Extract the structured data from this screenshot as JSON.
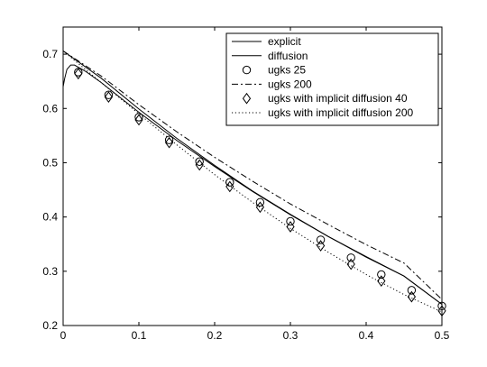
{
  "chart_data": {
    "type": "line",
    "title": "",
    "xlabel": "",
    "ylabel": "",
    "xlim": [
      0,
      0.5
    ],
    "ylim": [
      0.2,
      0.75
    ],
    "xticks": [
      0,
      0.1,
      0.2,
      0.3,
      0.4,
      0.5
    ],
    "yticks": [
      0.2,
      0.3,
      0.4,
      0.5,
      0.6,
      0.7
    ],
    "xtick_labels": [
      "0",
      "0.1",
      "0.2",
      "0.3",
      "0.4",
      "0.5"
    ],
    "ytick_labels": [
      "0.2",
      "0.3",
      "0.4",
      "0.5",
      "0.6",
      "0.7"
    ],
    "grid": false,
    "legend_position": "top-right",
    "series": [
      {
        "name": "explicit",
        "style": "solid",
        "marker": "none",
        "x": [
          0,
          0.002,
          0.005,
          0.01,
          0.015,
          0.02,
          0.03,
          0.05,
          0.1,
          0.15,
          0.2,
          0.25,
          0.3,
          0.35,
          0.4,
          0.45,
          0.5
        ],
        "y": [
          0.64,
          0.655,
          0.672,
          0.68,
          0.68,
          0.676,
          0.668,
          0.648,
          0.593,
          0.541,
          0.493,
          0.447,
          0.404,
          0.364,
          0.326,
          0.291,
          0.239
        ]
      },
      {
        "name": "diffusion",
        "style": "solid",
        "marker": "none",
        "x": [
          0,
          0.05,
          0.1,
          0.15,
          0.2,
          0.25,
          0.3,
          0.35,
          0.4,
          0.45,
          0.5
        ],
        "y": [
          0.706,
          0.656,
          0.599,
          0.545,
          0.495,
          0.448,
          0.405,
          0.364,
          0.327,
          0.291,
          0.239
        ]
      },
      {
        "name": "ugks 25",
        "style": "none",
        "marker": "circle",
        "x": [
          0.02,
          0.06,
          0.1,
          0.14,
          0.18,
          0.22,
          0.26,
          0.3,
          0.34,
          0.38,
          0.42,
          0.46,
          0.5
        ],
        "y": [
          0.667,
          0.625,
          0.584,
          0.542,
          0.502,
          0.464,
          0.427,
          0.392,
          0.358,
          0.325,
          0.294,
          0.265,
          0.236
        ]
      },
      {
        "name": "ugks 200",
        "style": "dashdot",
        "marker": "none",
        "x": [
          0,
          0.05,
          0.1,
          0.15,
          0.2,
          0.25,
          0.3,
          0.35,
          0.4,
          0.45,
          0.5
        ],
        "y": [
          0.706,
          0.66,
          0.607,
          0.557,
          0.51,
          0.466,
          0.424,
          0.386,
          0.349,
          0.315,
          0.248
        ]
      },
      {
        "name": "ugks with implicit diffusion 40",
        "style": "none",
        "marker": "diamond",
        "x": [
          0.02,
          0.06,
          0.1,
          0.14,
          0.18,
          0.22,
          0.26,
          0.3,
          0.34,
          0.38,
          0.42,
          0.46,
          0.5
        ],
        "y": [
          0.664,
          0.621,
          0.579,
          0.537,
          0.496,
          0.456,
          0.418,
          0.382,
          0.347,
          0.313,
          0.282,
          0.253,
          0.227
        ]
      },
      {
        "name": "ugks with implicit diffusion 200",
        "style": "dotted",
        "marker": "none",
        "x": [
          0,
          0.05,
          0.1,
          0.15,
          0.2,
          0.25,
          0.3,
          0.35,
          0.4,
          0.45,
          0.5
        ],
        "y": [
          0.706,
          0.648,
          0.59,
          0.533,
          0.478,
          0.427,
          0.379,
          0.335,
          0.294,
          0.257,
          0.225
        ]
      }
    ]
  }
}
